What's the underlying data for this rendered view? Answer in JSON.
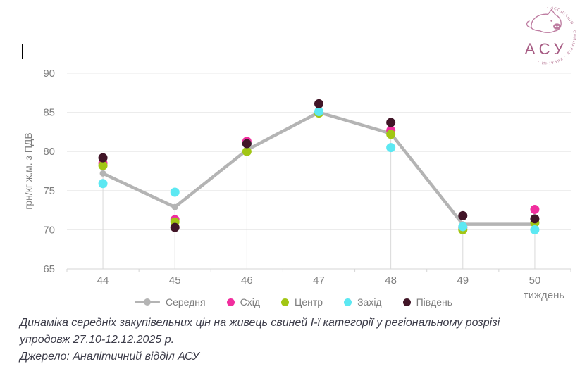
{
  "logo": {
    "ring_text": "·  АСОЦІАЦІЯ  ·  СВИНАРІВ  ·  УКРАЇНИ  ·",
    "acronym": "АСУ"
  },
  "caption": {
    "line1": "Динаміка середніх закупівельних цін на живець свиней І-ї категорії у регіональному розрізі",
    "line2": "упродовж 27.10-12.12.2025 р.",
    "source": "Джерело: Аналітичний відділ АСУ"
  },
  "chart_data": {
    "type": "line",
    "x": [
      44,
      45,
      46,
      47,
      48,
      49,
      50
    ],
    "xlabel": "тиждень",
    "ylabel": "грн/кг ж.м. з ПДВ",
    "ylim": [
      65,
      90
    ],
    "yticks": [
      65,
      70,
      75,
      80,
      85,
      90
    ],
    "grid": true,
    "legend_position": "bottom",
    "series": [
      {
        "name": "Середня",
        "type": "line",
        "color": "#b4b4b4",
        "values": [
          77.2,
          72.9,
          80.2,
          85.0,
          82.3,
          70.7,
          70.7
        ]
      },
      {
        "name": "Схід",
        "type": "scatter",
        "color": "#f12e9e",
        "values": [
          78.5,
          71.3,
          81.3,
          85.0,
          82.7,
          70.3,
          72.6
        ]
      },
      {
        "name": "Центр",
        "type": "scatter",
        "color": "#a2c614",
        "values": [
          78.2,
          71.0,
          80.0,
          84.9,
          82.2,
          70.0,
          70.9
        ]
      },
      {
        "name": "Захід",
        "type": "scatter",
        "color": "#5ce8f2",
        "values": [
          75.9,
          74.8,
          81.0,
          85.1,
          80.5,
          70.4,
          70.0
        ]
      },
      {
        "name": "Південь",
        "type": "scatter",
        "color": "#411527",
        "values": [
          79.2,
          70.3,
          81.0,
          86.1,
          83.7,
          71.8,
          71.4
        ]
      }
    ]
  }
}
